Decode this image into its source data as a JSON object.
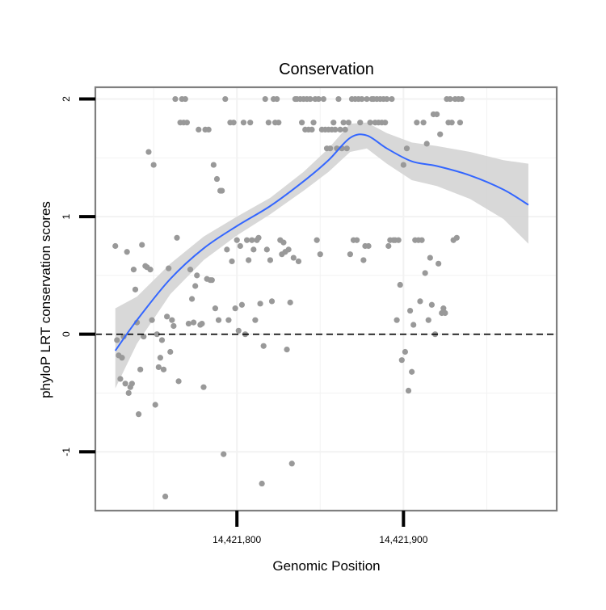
{
  "chart_data": {
    "type": "scatter",
    "title": "Conservation",
    "xlabel": "Genomic Position",
    "ylabel": "phyloP LRT conservation scores",
    "xlim": [
      14421715,
      14421992
    ],
    "ylim": [
      -1.5,
      2.1
    ],
    "x_ticks": [
      {
        "value": 14421800,
        "label": "14,421,800"
      },
      {
        "value": 14421900,
        "label": "14,421,900"
      }
    ],
    "y_ticks": [
      {
        "value": -1,
        "label": "-1"
      },
      {
        "value": 0,
        "label": "0"
      },
      {
        "value": 1,
        "label": "1"
      },
      {
        "value": 2,
        "label": "2"
      }
    ],
    "grid": true,
    "reference_line": {
      "y": 0,
      "style": "dashed"
    },
    "colors": {
      "points": "#999999",
      "smooth": "#3366ff",
      "ribbon": "#d4d4d4",
      "border": "#7f7f7f",
      "grid": "#f2f2f2"
    },
    "points": [
      [
        14421727,
        0.75
      ],
      [
        14421728,
        -0.05
      ],
      [
        14421729,
        -0.18
      ],
      [
        14421730,
        -0.38
      ],
      [
        14421731,
        -0.2
      ],
      [
        14421732,
        -0.02
      ],
      [
        14421733,
        -0.42
      ],
      [
        14421734,
        0.7
      ],
      [
        14421735,
        -0.5
      ],
      [
        14421736,
        -0.45
      ],
      [
        14421737,
        -0.42
      ],
      [
        14421738,
        0.55
      ],
      [
        14421739,
        0.38
      ],
      [
        14421740,
        0.1
      ],
      [
        14421741,
        -0.68
      ],
      [
        14421742,
        -0.3
      ],
      [
        14421743,
        0.76
      ],
      [
        14421744,
        -0.02
      ],
      [
        14421745,
        0.58
      ],
      [
        14421746,
        0.57
      ],
      [
        14421747,
        1.55
      ],
      [
        14421748,
        0.55
      ],
      [
        14421749,
        0.12
      ],
      [
        14421750,
        1.44
      ],
      [
        14421751,
        -0.6
      ],
      [
        14421752,
        0.0
      ],
      [
        14421753,
        -0.28
      ],
      [
        14421754,
        -0.2
      ],
      [
        14421755,
        -0.05
      ],
      [
        14421756,
        -0.3
      ],
      [
        14421757,
        -1.38
      ],
      [
        14421758,
        0.15
      ],
      [
        14421759,
        0.56
      ],
      [
        14421760,
        -0.15
      ],
      [
        14421761,
        0.12
      ],
      [
        14421762,
        0.07
      ],
      [
        14421763,
        2.0
      ],
      [
        14421764,
        0.82
      ],
      [
        14421765,
        -0.4
      ],
      [
        14421766,
        1.8
      ],
      [
        14421767,
        2.0
      ],
      [
        14421768,
        1.8
      ],
      [
        14421769,
        2.0
      ],
      [
        14421770,
        1.8
      ],
      [
        14421771,
        0.09
      ],
      [
        14421772,
        0.55
      ],
      [
        14421773,
        0.3
      ],
      [
        14421774,
        0.1
      ],
      [
        14421775,
        0.41
      ],
      [
        14421776,
        0.5
      ],
      [
        14421777,
        1.74
      ],
      [
        14421778,
        0.08
      ],
      [
        14421779,
        0.09
      ],
      [
        14421780,
        -0.45
      ],
      [
        14421781,
        1.74
      ],
      [
        14421782,
        0.47
      ],
      [
        14421783,
        1.74
      ],
      [
        14421784,
        0.46
      ],
      [
        14421785,
        0.46
      ],
      [
        14421786,
        1.44
      ],
      [
        14421787,
        0.22
      ],
      [
        14421788,
        1.32
      ],
      [
        14421789,
        0.12
      ],
      [
        14421790,
        1.22
      ],
      [
        14421791,
        1.22
      ],
      [
        14421792,
        -1.02
      ],
      [
        14421793,
        2.0
      ],
      [
        14421794,
        0.72
      ],
      [
        14421795,
        0.12
      ],
      [
        14421796,
        1.8
      ],
      [
        14421797,
        0.62
      ],
      [
        14421798,
        1.8
      ],
      [
        14421799,
        0.22
      ],
      [
        14421800,
        0.8
      ],
      [
        14421801,
        0.03
      ],
      [
        14421802,
        0.75
      ],
      [
        14421803,
        0.25
      ],
      [
        14421804,
        1.8
      ],
      [
        14421805,
        0.0
      ],
      [
        14421806,
        0.8
      ],
      [
        14421807,
        0.63
      ],
      [
        14421808,
        1.8
      ],
      [
        14421809,
        0.8
      ],
      [
        14421810,
        0.72
      ],
      [
        14421811,
        0.12
      ],
      [
        14421812,
        0.8
      ],
      [
        14421813,
        0.82
      ],
      [
        14421814,
        0.26
      ],
      [
        14421815,
        -1.27
      ],
      [
        14421816,
        -0.1
      ],
      [
        14421817,
        2.0
      ],
      [
        14421818,
        0.72
      ],
      [
        14421819,
        1.8
      ],
      [
        14421820,
        0.63
      ],
      [
        14421821,
        0.28
      ],
      [
        14421822,
        2.0
      ],
      [
        14421823,
        1.8
      ],
      [
        14421824,
        2.0
      ],
      [
        14421825,
        1.8
      ],
      [
        14421826,
        0.8
      ],
      [
        14421827,
        0.68
      ],
      [
        14421828,
        0.78
      ],
      [
        14421829,
        0.7
      ],
      [
        14421830,
        -0.13
      ],
      [
        14421831,
        0.72
      ],
      [
        14421832,
        0.27
      ],
      [
        14421833,
        -1.1
      ],
      [
        14421834,
        0.65
      ],
      [
        14421835,
        2.0
      ],
      [
        14421836,
        2.0
      ],
      [
        14421837,
        0.62
      ],
      [
        14421838,
        2.0
      ],
      [
        14421839,
        1.8
      ],
      [
        14421840,
        2.0
      ],
      [
        14421841,
        1.74
      ],
      [
        14421842,
        2.0
      ],
      [
        14421843,
        1.74
      ],
      [
        14421844,
        2.0
      ],
      [
        14421845,
        1.74
      ],
      [
        14421846,
        1.8
      ],
      [
        14421847,
        2.0
      ],
      [
        14421848,
        0.8
      ],
      [
        14421849,
        2.0
      ],
      [
        14421850,
        0.68
      ],
      [
        14421851,
        1.74
      ],
      [
        14421852,
        2.0
      ],
      [
        14421853,
        1.74
      ],
      [
        14421854,
        1.58
      ],
      [
        14421855,
        1.74
      ],
      [
        14421856,
        1.58
      ],
      [
        14421857,
        1.74
      ],
      [
        14421858,
        1.8
      ],
      [
        14421859,
        1.74
      ],
      [
        14421860,
        1.58
      ],
      [
        14421861,
        2.0
      ],
      [
        14421862,
        1.74
      ],
      [
        14421863,
        1.58
      ],
      [
        14421864,
        1.8
      ],
      [
        14421865,
        1.74
      ],
      [
        14421866,
        1.58
      ],
      [
        14421867,
        1.8
      ],
      [
        14421868,
        0.68
      ],
      [
        14421869,
        2.0
      ],
      [
        14421870,
        0.8
      ],
      [
        14421871,
        2.0
      ],
      [
        14421872,
        0.8
      ],
      [
        14421873,
        2.0
      ],
      [
        14421874,
        1.8
      ],
      [
        14421875,
        2.0
      ],
      [
        14421876,
        0.63
      ],
      [
        14421877,
        0.75
      ],
      [
        14421878,
        2.0
      ],
      [
        14421879,
        0.75
      ],
      [
        14421880,
        1.8
      ],
      [
        14421881,
        2.0
      ],
      [
        14421882,
        2.0
      ],
      [
        14421883,
        1.8
      ],
      [
        14421884,
        2.0
      ],
      [
        14421885,
        1.8
      ],
      [
        14421886,
        2.0
      ],
      [
        14421887,
        1.8
      ],
      [
        14421888,
        2.0
      ],
      [
        14421889,
        1.8
      ],
      [
        14421890,
        2.0
      ],
      [
        14421891,
        0.75
      ],
      [
        14421892,
        0.8
      ],
      [
        14421893,
        2.0
      ],
      [
        14421894,
        0.8
      ],
      [
        14421895,
        0.8
      ],
      [
        14421896,
        0.12
      ],
      [
        14421897,
        0.8
      ],
      [
        14421898,
        0.42
      ],
      [
        14421899,
        -0.22
      ],
      [
        14421900,
        1.44
      ],
      [
        14421901,
        -0.15
      ],
      [
        14421902,
        1.58
      ],
      [
        14421903,
        -0.48
      ],
      [
        14421904,
        0.2
      ],
      [
        14421905,
        -0.32
      ],
      [
        14421906,
        0.08
      ],
      [
        14421907,
        0.8
      ],
      [
        14421908,
        1.8
      ],
      [
        14421909,
        0.8
      ],
      [
        14421910,
        0.28
      ],
      [
        14421911,
        0.8
      ],
      [
        14421912,
        1.8
      ],
      [
        14421913,
        0.52
      ],
      [
        14421914,
        1.62
      ],
      [
        14421915,
        0.12
      ],
      [
        14421916,
        0.65
      ],
      [
        14421917,
        0.25
      ],
      [
        14421918,
        1.87
      ],
      [
        14421919,
        0.0
      ],
      [
        14421920,
        1.87
      ],
      [
        14421921,
        0.6
      ],
      [
        14421922,
        1.7
      ],
      [
        14421923,
        0.18
      ],
      [
        14421924,
        0.22
      ],
      [
        14421925,
        0.18
      ],
      [
        14421926,
        2.0
      ],
      [
        14421927,
        1.8
      ],
      [
        14421928,
        2.0
      ],
      [
        14421929,
        1.8
      ],
      [
        14421930,
        0.8
      ],
      [
        14421931,
        2.0
      ],
      [
        14421932,
        0.82
      ],
      [
        14421933,
        2.0
      ],
      [
        14421934,
        1.8
      ],
      [
        14421935,
        2.0
      ]
    ],
    "smooth_line": {
      "x": [
        14421727,
        14421740,
        14421760,
        14421780,
        14421800,
        14421820,
        14421840,
        14421855,
        14421868,
        14421878,
        14421890,
        14421905,
        14421920,
        14421940,
        14421960,
        14421975
      ],
      "y": [
        -0.14,
        0.12,
        0.47,
        0.73,
        0.92,
        1.09,
        1.3,
        1.48,
        1.67,
        1.69,
        1.58,
        1.47,
        1.43,
        1.35,
        1.23,
        1.1
      ],
      "lower": [
        -0.46,
        -0.08,
        0.34,
        0.63,
        0.84,
        1.02,
        1.22,
        1.38,
        1.55,
        1.58,
        1.45,
        1.31,
        1.26,
        1.15,
        0.98,
        0.77
      ],
      "upper": [
        0.22,
        0.32,
        0.6,
        0.83,
        1.0,
        1.16,
        1.38,
        1.58,
        1.79,
        1.8,
        1.71,
        1.63,
        1.6,
        1.55,
        1.48,
        1.45
      ]
    }
  }
}
